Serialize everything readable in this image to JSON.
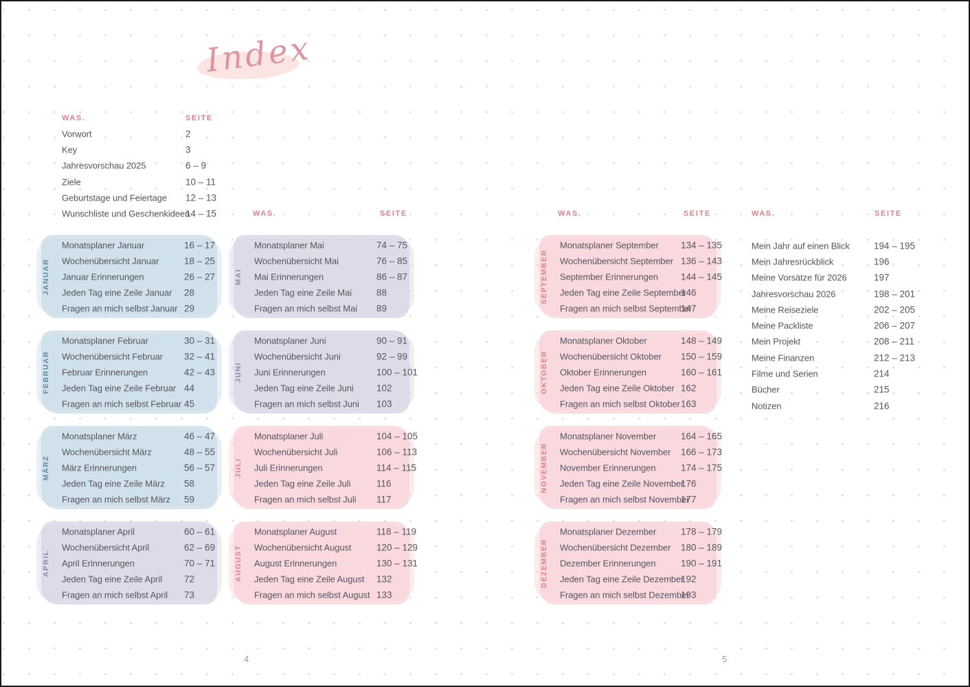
{
  "page": {
    "title": "Index",
    "left_page_number": "4",
    "right_page_number": "5",
    "headers": {
      "was": "WAS.",
      "seite": "SEITE"
    }
  },
  "colors": {
    "accent_pink": "#d9838e",
    "label_blue": "#5c89a4",
    "label_purple": "#8d87a9",
    "block_blue_bg": "#dce6ec",
    "block_purple_bg": "#e4e2ec",
    "block_pink_bg": "#fadfe2",
    "body_text": "#55565e",
    "title_script": "#dd95a3",
    "title_swash": "#fbe5e2",
    "grid_dot": "#dadada"
  },
  "front_matter": {
    "items": [
      {
        "label": "Vorwort",
        "pages": "2"
      },
      {
        "label": "Key",
        "pages": "3"
      },
      {
        "label": "Jahresvorschau 2025",
        "pages": "6 – 9"
      },
      {
        "label": "Ziele",
        "pages": "10 – 11"
      },
      {
        "label": "Geburtstage und Feiertage",
        "pages": "12 – 13"
      },
      {
        "label": "Wunschliste und Geschenkideen",
        "pages": "14 – 15"
      }
    ]
  },
  "month_columns": [
    {
      "months": [
        {
          "name": "JANUAR",
          "theme": "blue",
          "items": [
            {
              "label": "Monatsplaner Januar",
              "pages": "16 – 17"
            },
            {
              "label": "Wochenübersicht Januar",
              "pages": "18 – 25"
            },
            {
              "label": "Januar Erinnerungen",
              "pages": "26 – 27"
            },
            {
              "label": "Jeden Tag eine Zeile Januar",
              "pages": "28"
            },
            {
              "label": "Fragen an mich selbst Januar",
              "pages": "29"
            }
          ]
        },
        {
          "name": "FEBRUAR",
          "theme": "blue",
          "items": [
            {
              "label": "Monatsplaner Februar",
              "pages": "30 – 31"
            },
            {
              "label": "Wochenübersicht Februar",
              "pages": "32 – 41"
            },
            {
              "label": "Februar Erinnerungen",
              "pages": "42 – 43"
            },
            {
              "label": "Jeden Tag eine Zeile Februar",
              "pages": "44"
            },
            {
              "label": "Fragen an mich selbst Februar",
              "pages": "45"
            }
          ]
        },
        {
          "name": "MÄRZ",
          "theme": "blue",
          "items": [
            {
              "label": "Monatsplaner März",
              "pages": "46 – 47"
            },
            {
              "label": "Wochenübersicht März",
              "pages": "48 – 55"
            },
            {
              "label": "März Erinnerungen",
              "pages": "56 – 57"
            },
            {
              "label": "Jeden Tag eine Zeile März",
              "pages": "58"
            },
            {
              "label": "Fragen an mich selbst März",
              "pages": "59"
            }
          ]
        },
        {
          "name": "APRIL",
          "theme": "purple",
          "items": [
            {
              "label": "Monatsplaner April",
              "pages": "60 – 61"
            },
            {
              "label": "Wochenübersicht April",
              "pages": "62 – 69"
            },
            {
              "label": "April Erinnerungen",
              "pages": "70 – 71"
            },
            {
              "label": "Jeden Tag eine Zeile April",
              "pages": "72"
            },
            {
              "label": "Fragen an mich selbst April",
              "pages": "73"
            }
          ]
        }
      ]
    },
    {
      "months": [
        {
          "name": "MAI",
          "theme": "purple",
          "items": [
            {
              "label": "Monatsplaner Mai",
              "pages": "74 – 75"
            },
            {
              "label": "Wochenübersicht Mai",
              "pages": "76 – 85"
            },
            {
              "label": "Mai Erinnerungen",
              "pages": "86 – 87"
            },
            {
              "label": "Jeden Tag eine Zeile Mai",
              "pages": "88"
            },
            {
              "label": "Fragen an mich selbst Mai",
              "pages": "89"
            }
          ]
        },
        {
          "name": "JUNI",
          "theme": "purple",
          "items": [
            {
              "label": "Monatsplaner Juni",
              "pages": "90 – 91"
            },
            {
              "label": "Wochenübersicht Juni",
              "pages": "92 – 99"
            },
            {
              "label": "Juni Erinnerungen",
              "pages": "100 – 101"
            },
            {
              "label": "Jeden Tag eine Zeile Juni",
              "pages": "102"
            },
            {
              "label": "Fragen an mich selbst Juni",
              "pages": "103"
            }
          ]
        },
        {
          "name": "JULI",
          "theme": "pink",
          "items": [
            {
              "label": "Monatsplaner Juli",
              "pages": "104 – 105"
            },
            {
              "label": "Wochenübersicht Juli",
              "pages": "106 – 113"
            },
            {
              "label": "Juli Erinnerungen",
              "pages": "114 – 115"
            },
            {
              "label": "Jeden Tag eine Zeile Juli",
              "pages": "116"
            },
            {
              "label": "Fragen an mich selbst Juli",
              "pages": "117"
            }
          ]
        },
        {
          "name": "AUGUST",
          "theme": "pink",
          "items": [
            {
              "label": "Monatsplaner August",
              "pages": "118 – 119"
            },
            {
              "label": "Wochenübersicht August",
              "pages": "120 – 129"
            },
            {
              "label": "August Erinnerungen",
              "pages": "130 – 131"
            },
            {
              "label": "Jeden Tag eine Zeile August",
              "pages": "132"
            },
            {
              "label": "Fragen an mich selbst August",
              "pages": "133"
            }
          ]
        }
      ]
    },
    {
      "months": [
        {
          "name": "SEPTEMBER",
          "theme": "pink",
          "items": [
            {
              "label": "Monatsplaner September",
              "pages": "134 – 135"
            },
            {
              "label": "Wochenübersicht September",
              "pages": "136 – 143"
            },
            {
              "label": "September Erinnerungen",
              "pages": "144 – 145"
            },
            {
              "label": "Jeden Tag eine Zeile September",
              "pages": "146"
            },
            {
              "label": "Fragen an mich selbst September",
              "pages": "147"
            }
          ]
        },
        {
          "name": "OKTOBER",
          "theme": "pink",
          "items": [
            {
              "label": "Monatsplaner Oktober",
              "pages": "148 – 149"
            },
            {
              "label": "Wochenübersicht Oktober",
              "pages": "150 – 159"
            },
            {
              "label": "Oktober Erinnerungen",
              "pages": "160 – 161"
            },
            {
              "label": "Jeden Tag eine Zeile Oktober",
              "pages": "162"
            },
            {
              "label": "Fragen an mich selbst Oktober",
              "pages": "163"
            }
          ]
        },
        {
          "name": "NOVEMBER",
          "theme": "pink",
          "items": [
            {
              "label": "Monatsplaner November",
              "pages": "164 – 165"
            },
            {
              "label": "Wochenübersicht November",
              "pages": "166 – 173"
            },
            {
              "label": "November Erinnerungen",
              "pages": "174 – 175"
            },
            {
              "label": "Jeden Tag eine Zeile November",
              "pages": "176"
            },
            {
              "label": "Fragen an mich selbst November",
              "pages": "177"
            }
          ]
        },
        {
          "name": "DEZEMBER",
          "theme": "pink",
          "items": [
            {
              "label": "Monatsplaner Dezember",
              "pages": "178 – 179"
            },
            {
              "label": "Wochenübersicht Dezember",
              "pages": "180 – 189"
            },
            {
              "label": "Dezember Erinnerungen",
              "pages": "190 – 191"
            },
            {
              "label": "Jeden Tag eine Zeile Dezember",
              "pages": "192"
            },
            {
              "label": "Fragen an mich selbst Dezember",
              "pages": "193"
            }
          ]
        }
      ]
    }
  ],
  "back_matter": {
    "items": [
      {
        "label": "Mein Jahr auf einen Blick",
        "pages": "194 – 195"
      },
      {
        "label": "Mein Jahresrückblick",
        "pages": "196"
      },
      {
        "label": "Meine Vorsätze für 2026",
        "pages": "197"
      },
      {
        "label": "Jahresvorschau 2026",
        "pages": "198 – 201"
      },
      {
        "label": "Meine Reiseziele",
        "pages": "202 – 205"
      },
      {
        "label": "Meine Packliste",
        "pages": "206 – 207"
      },
      {
        "label": "Mein Projekt",
        "pages": "208 – 211"
      },
      {
        "label": "Meine Finanzen",
        "pages": "212 – 213"
      },
      {
        "label": "Filme und Serien",
        "pages": "214"
      },
      {
        "label": "Bücher",
        "pages": "215"
      },
      {
        "label": "Notizen",
        "pages": "216"
      }
    ]
  }
}
